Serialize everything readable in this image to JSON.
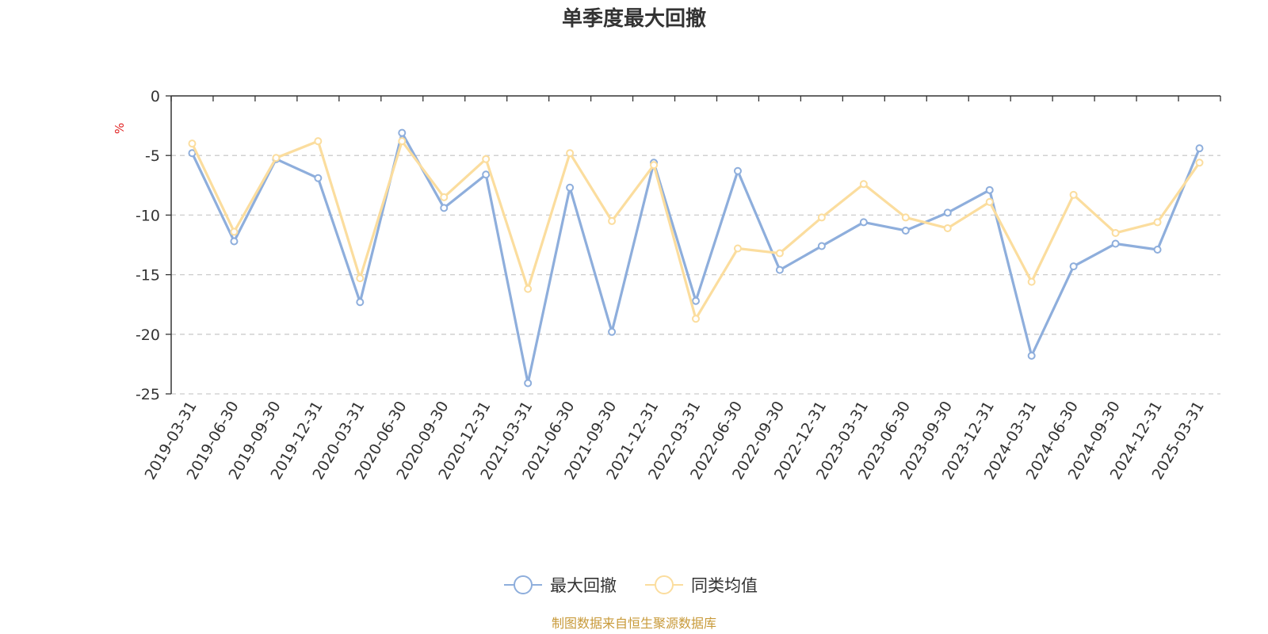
{
  "chart_data": {
    "type": "line",
    "title": "单季度最大回撤",
    "ylabel": "%",
    "ylim": [
      -25,
      0
    ],
    "yticks": [
      0,
      -5,
      -10,
      -15,
      -20,
      -25
    ],
    "grid": true,
    "legend_position": "bottom",
    "categories": [
      "2019-03-31",
      "2019-06-30",
      "2019-09-30",
      "2019-12-31",
      "2020-03-31",
      "2020-06-30",
      "2020-09-30",
      "2020-12-31",
      "2021-03-31",
      "2021-06-30",
      "2021-09-30",
      "2021-12-31",
      "2022-03-31",
      "2022-06-30",
      "2022-09-30",
      "2022-12-31",
      "2023-03-31",
      "2023-06-30",
      "2023-09-30",
      "2023-12-31",
      "2024-03-31",
      "2024-06-30",
      "2024-09-30",
      "2024-12-31",
      "2025-03-31"
    ],
    "series": [
      {
        "name": "最大回撤",
        "color": "#8eaedc",
        "values": [
          -4.8,
          -12.2,
          -5.3,
          -6.9,
          -17.3,
          -3.1,
          -9.4,
          -6.6,
          -24.1,
          -7.7,
          -19.8,
          -5.6,
          -17.2,
          -6.3,
          -14.6,
          -12.6,
          -10.6,
          -11.3,
          -9.8,
          -7.9,
          -21.8,
          -14.3,
          -12.4,
          -12.9,
          -4.4
        ]
      },
      {
        "name": "同类均值",
        "color": "#fbdd9e",
        "values": [
          -4.0,
          -11.4,
          -5.2,
          -3.8,
          -15.3,
          -3.8,
          -8.5,
          -5.3,
          -16.2,
          -4.8,
          -10.5,
          -5.8,
          -18.7,
          -12.8,
          -13.2,
          -10.2,
          -7.4,
          -10.2,
          -11.1,
          -8.9,
          -15.6,
          -8.3,
          -11.5,
          -10.6,
          -5.6
        ]
      }
    ]
  },
  "footer": {
    "source": "制图数据来自恒生聚源数据库"
  }
}
